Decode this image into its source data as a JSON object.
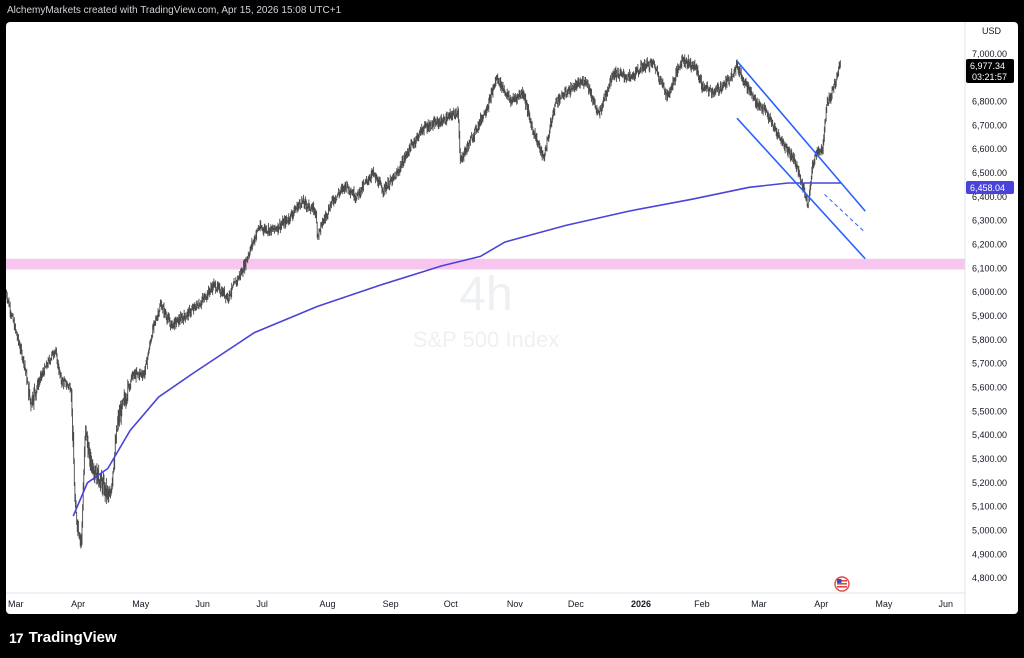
{
  "header": {
    "caption": "AlchemyMarkets created with TradingView.com, Apr 15, 2026 15:08 UTC+1"
  },
  "watermark": {
    "interval": "4h",
    "symbol_name": "S&P 500 Index"
  },
  "footer": {
    "logo_mark": "17",
    "logo_text": "TradingView"
  },
  "price_axis": {
    "currency": "USD",
    "last_price": "6,977.34",
    "countdown": "03:21:57",
    "ma_value": "6,458.04",
    "last_price_color": "#000000",
    "ma_badge_color": "#4a43d9"
  },
  "chart_data": {
    "type": "candlestick",
    "interval": "4h",
    "ylim": [
      4750,
      7100
    ],
    "y_ticks": [
      "7,000.00",
      "6,900.00",
      "6,800.00",
      "6,700.00",
      "6,600.00",
      "6,500.00",
      "6,400.00",
      "6,300.00",
      "6,200.00",
      "6,100.00",
      "6,000.00",
      "5,900.00",
      "5,800.00",
      "5,700.00",
      "5,600.00",
      "5,500.00",
      "5,400.00",
      "5,300.00",
      "5,200.00",
      "5,100.00",
      "5,000.00",
      "4,900.00",
      "4,800.00"
    ],
    "y_tick_values": [
      7000,
      6900,
      6800,
      6700,
      6600,
      6500,
      6400,
      6300,
      6200,
      6100,
      6000,
      5900,
      5800,
      5700,
      5600,
      5500,
      5400,
      5300,
      5200,
      5100,
      5000,
      4900,
      4800
    ],
    "x_axis": {
      "start": "2025-03-01",
      "end": "2026-06-15",
      "labels": [
        {
          "date": "2025-03-01",
          "text": "Mar"
        },
        {
          "date": "2025-04-01",
          "text": "Apr"
        },
        {
          "date": "2025-05-01",
          "text": "May"
        },
        {
          "date": "2025-06-01",
          "text": "Jun"
        },
        {
          "date": "2025-07-01",
          "text": "Jul"
        },
        {
          "date": "2025-08-01",
          "text": "Aug"
        },
        {
          "date": "2025-09-01",
          "text": "Sep"
        },
        {
          "date": "2025-10-01",
          "text": "Oct"
        },
        {
          "date": "2025-11-01",
          "text": "Nov"
        },
        {
          "date": "2025-12-01",
          "text": "Dec"
        },
        {
          "date": "2026-01-01",
          "text": "2026",
          "bold": true
        },
        {
          "date": "2026-02-01",
          "text": "Feb"
        },
        {
          "date": "2026-03-01",
          "text": "Mar"
        },
        {
          "date": "2026-04-01",
          "text": "Apr"
        },
        {
          "date": "2026-05-01",
          "text": "May"
        },
        {
          "date": "2026-06-01",
          "text": "Jun"
        }
      ]
    },
    "price_path": [
      [
        "2025-03-01",
        6000
      ],
      [
        "2025-03-05",
        5860
      ],
      [
        "2025-03-10",
        5700
      ],
      [
        "2025-03-13",
        5540
      ],
      [
        "2025-03-18",
        5640
      ],
      [
        "2025-03-25",
        5760
      ],
      [
        "2025-03-28",
        5630
      ],
      [
        "2025-04-02",
        5600
      ],
      [
        "2025-04-04",
        5080
      ],
      [
        "2025-04-07",
        4950
      ],
      [
        "2025-04-09",
        5430
      ],
      [
        "2025-04-11",
        5300
      ],
      [
        "2025-04-15",
        5230
      ],
      [
        "2025-04-21",
        5130
      ],
      [
        "2025-04-25",
        5460
      ],
      [
        "2025-05-02",
        5650
      ],
      [
        "2025-05-08",
        5660
      ],
      [
        "2025-05-12",
        5840
      ],
      [
        "2025-05-16",
        5950
      ],
      [
        "2025-05-21",
        5860
      ],
      [
        "2025-05-28",
        5900
      ],
      [
        "2025-06-05",
        5960
      ],
      [
        "2025-06-11",
        6030
      ],
      [
        "2025-06-18",
        5980
      ],
      [
        "2025-06-25",
        6090
      ],
      [
        "2025-07-03",
        6270
      ],
      [
        "2025-07-10",
        6260
      ],
      [
        "2025-07-17",
        6300
      ],
      [
        "2025-07-24",
        6380
      ],
      [
        "2025-07-31",
        6340
      ],
      [
        "2025-08-01",
        6240
      ],
      [
        "2025-08-08",
        6380
      ],
      [
        "2025-08-15",
        6450
      ],
      [
        "2025-08-20",
        6400
      ],
      [
        "2025-08-28",
        6500
      ],
      [
        "2025-09-02",
        6430
      ],
      [
        "2025-09-08",
        6480
      ],
      [
        "2025-09-15",
        6600
      ],
      [
        "2025-09-22",
        6690
      ],
      [
        "2025-10-02",
        6720
      ],
      [
        "2025-10-09",
        6760
      ],
      [
        "2025-10-10",
        6550
      ],
      [
        "2025-10-16",
        6650
      ],
      [
        "2025-10-24",
        6790
      ],
      [
        "2025-10-28",
        6900
      ],
      [
        "2025-11-04",
        6800
      ],
      [
        "2025-11-10",
        6840
      ],
      [
        "2025-11-14",
        6700
      ],
      [
        "2025-11-20",
        6560
      ],
      [
        "2025-11-26",
        6800
      ],
      [
        "2025-12-03",
        6850
      ],
      [
        "2025-12-11",
        6890
      ],
      [
        "2025-12-17",
        6740
      ],
      [
        "2025-12-24",
        6920
      ],
      [
        "2026-01-02",
        6900
      ],
      [
        "2026-01-08",
        6950
      ],
      [
        "2026-01-13",
        6960
      ],
      [
        "2026-01-20",
        6820
      ],
      [
        "2026-01-27",
        6980
      ],
      [
        "2026-02-03",
        6940
      ],
      [
        "2026-02-06",
        6860
      ],
      [
        "2026-02-12",
        6840
      ],
      [
        "2026-02-18",
        6880
      ],
      [
        "2026-02-23",
        6950
      ],
      [
        "2026-02-27",
        6880
      ],
      [
        "2026-03-04",
        6800
      ],
      [
        "2026-03-09",
        6760
      ],
      [
        "2026-03-13",
        6690
      ],
      [
        "2026-03-18",
        6620
      ],
      [
        "2026-03-23",
        6560
      ],
      [
        "2026-03-26",
        6480
      ],
      [
        "2026-03-30",
        6370
      ],
      [
        "2026-04-01",
        6520
      ],
      [
        "2026-04-03",
        6590
      ],
      [
        "2026-04-06",
        6600
      ],
      [
        "2026-04-08",
        6790
      ],
      [
        "2026-04-10",
        6820
      ],
      [
        "2026-04-13",
        6900
      ],
      [
        "2026-04-15",
        6977
      ]
    ],
    "moving_average": [
      [
        "2025-04-03",
        5060
      ],
      [
        "2025-04-10",
        5200
      ],
      [
        "2025-04-20",
        5260
      ],
      [
        "2025-05-01",
        5420
      ],
      [
        "2025-05-15",
        5560
      ],
      [
        "2025-06-01",
        5660
      ],
      [
        "2025-07-01",
        5830
      ],
      [
        "2025-08-01",
        5940
      ],
      [
        "2025-09-01",
        6030
      ],
      [
        "2025-10-01",
        6110
      ],
      [
        "2025-10-20",
        6150
      ],
      [
        "2025-11-01",
        6210
      ],
      [
        "2025-12-01",
        6280
      ],
      [
        "2026-01-01",
        6340
      ],
      [
        "2026-02-01",
        6390
      ],
      [
        "2026-03-01",
        6440
      ],
      [
        "2026-03-20",
        6458
      ],
      [
        "2026-04-15",
        6458
      ]
    ],
    "support_zone": [
      6095,
      6140
    ],
    "channel_upper": [
      [
        "2026-02-23",
        6970
      ],
      [
        "2026-04-27",
        6340
      ]
    ],
    "channel_lower": [
      [
        "2026-02-23",
        6730
      ],
      [
        "2026-04-27",
        6140
      ]
    ],
    "channel_lower_projection": [
      [
        "2026-04-07",
        6410
      ],
      [
        "2026-04-27",
        6250
      ]
    ],
    "colors": {
      "candle": "#4a4a4a",
      "ma": "#4a43d9",
      "channel": "#2962ff",
      "zone": "#f7c6ef"
    }
  }
}
